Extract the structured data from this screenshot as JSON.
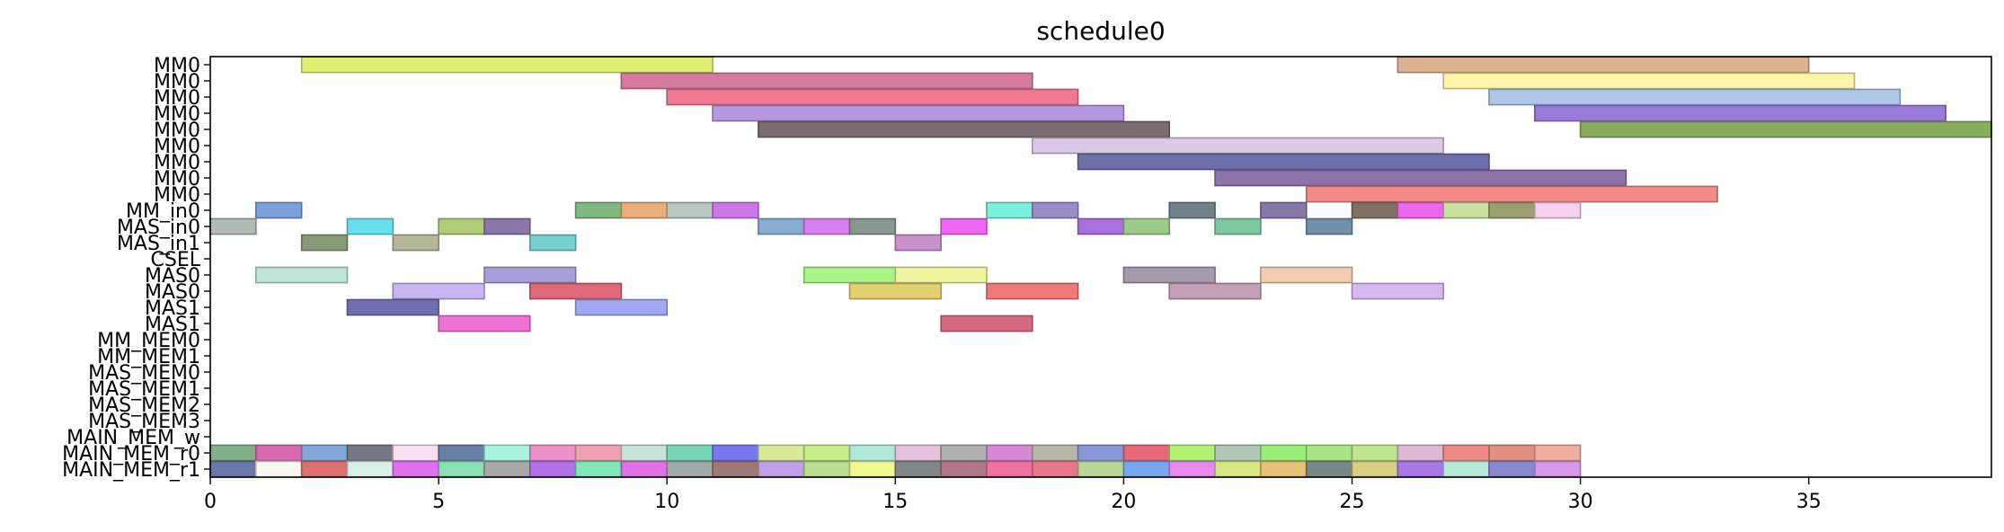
{
  "chart_data": {
    "type": "gantt",
    "title": "schedule0",
    "xlim": [
      0,
      39
    ],
    "xticks": [
      0,
      5,
      10,
      15,
      20,
      25,
      30,
      35
    ],
    "grid": false,
    "rows": [
      "MM0",
      "MM0",
      "MM0",
      "MM0",
      "MM0",
      "MM0",
      "MM0",
      "MM0",
      "MM0",
      "MM_in0",
      "MAS_in0",
      "MAS_in1",
      "CSEL",
      "MAS0",
      "MAS0",
      "MAS1",
      "MAS1",
      "MM_MEM0",
      "MM_MEM1",
      "MAS_MEM0",
      "MAS_MEM1",
      "MAS_MEM2",
      "MAS_MEM3",
      "MAIN_MEM_w",
      "MAIN_MEM_r0",
      "MAIN_MEM_r1"
    ],
    "tasks": [
      {
        "row": 0,
        "start": 2,
        "end": 11,
        "color": "#e0f070"
      },
      {
        "row": 0,
        "start": 26,
        "end": 35,
        "color": "#ddb090"
      },
      {
        "row": 1,
        "start": 9,
        "end": 18,
        "color": "#d87aa0"
      },
      {
        "row": 1,
        "start": 27,
        "end": 36,
        "color": "#fff3a8"
      },
      {
        "row": 2,
        "start": 10,
        "end": 19,
        "color": "#f07890"
      },
      {
        "row": 2,
        "start": 28,
        "end": 37,
        "color": "#aec6ea"
      },
      {
        "row": 3,
        "start": 11,
        "end": 20,
        "color": "#b598e0"
      },
      {
        "row": 3,
        "start": 29,
        "end": 38,
        "color": "#9a7ad8"
      },
      {
        "row": 4,
        "start": 12,
        "end": 21,
        "color": "#7a6e72"
      },
      {
        "row": 4,
        "start": 30,
        "end": 39,
        "color": "#8aae60"
      },
      {
        "row": 5,
        "start": 18,
        "end": 27,
        "color": "#dac8e6"
      },
      {
        "row": 6,
        "start": 19,
        "end": 28,
        "color": "#6e6eaa"
      },
      {
        "row": 7,
        "start": 22,
        "end": 31,
        "color": "#8e72ac"
      },
      {
        "row": 8,
        "start": 24,
        "end": 33,
        "color": "#f48a8a"
      },
      {
        "row": 9,
        "start": 1,
        "end": 2,
        "color": "#7aa0dc"
      },
      {
        "row": 9,
        "start": 8,
        "end": 9,
        "color": "#80b882"
      },
      {
        "row": 9,
        "start": 9,
        "end": 10,
        "color": "#e8b078"
      },
      {
        "row": 9,
        "start": 10,
        "end": 11,
        "color": "#b8c8c0"
      },
      {
        "row": 9,
        "start": 11,
        "end": 12,
        "color": "#cc78e8"
      },
      {
        "row": 9,
        "start": 17,
        "end": 18,
        "color": "#78f2de"
      },
      {
        "row": 9,
        "start": 18,
        "end": 19,
        "color": "#9a8ec8"
      },
      {
        "row": 9,
        "start": 21,
        "end": 22,
        "color": "#6e8288"
      },
      {
        "row": 9,
        "start": 23,
        "end": 24,
        "color": "#8878a8"
      },
      {
        "row": 9,
        "start": 25,
        "end": 26,
        "color": "#807260"
      },
      {
        "row": 9,
        "start": 26,
        "end": 27,
        "color": "#ee66ee"
      },
      {
        "row": 9,
        "start": 27,
        "end": 28,
        "color": "#c8e0a0"
      },
      {
        "row": 9,
        "start": 28,
        "end": 29,
        "color": "#9aa070"
      },
      {
        "row": 9,
        "start": 29,
        "end": 30,
        "color": "#f2d0ee"
      },
      {
        "row": 10,
        "start": 0,
        "end": 1,
        "color": "#b0bcb4"
      },
      {
        "row": 10,
        "start": 3,
        "end": 4,
        "color": "#66e2ee"
      },
      {
        "row": 10,
        "start": 5,
        "end": 6,
        "color": "#b0cc78"
      },
      {
        "row": 10,
        "start": 6,
        "end": 7,
        "color": "#8c78a8"
      },
      {
        "row": 10,
        "start": 12,
        "end": 13,
        "color": "#88acd4"
      },
      {
        "row": 10,
        "start": 13,
        "end": 14,
        "color": "#d87ef0"
      },
      {
        "row": 10,
        "start": 14,
        "end": 15,
        "color": "#889890"
      },
      {
        "row": 10,
        "start": 16,
        "end": 17,
        "color": "#ee66f2"
      },
      {
        "row": 10,
        "start": 19,
        "end": 20,
        "color": "#a870dc"
      },
      {
        "row": 10,
        "start": 20,
        "end": 21,
        "color": "#9ccc88"
      },
      {
        "row": 10,
        "start": 22,
        "end": 23,
        "color": "#7ec8a0"
      },
      {
        "row": 10,
        "start": 24,
        "end": 25,
        "color": "#7090a8"
      },
      {
        "row": 11,
        "start": 2,
        "end": 3,
        "color": "#869a76"
      },
      {
        "row": 11,
        "start": 4,
        "end": 5,
        "color": "#b4b898"
      },
      {
        "row": 11,
        "start": 7,
        "end": 8,
        "color": "#78d0d0"
      },
      {
        "row": 11,
        "start": 15,
        "end": 16,
        "color": "#c890cc"
      },
      {
        "row": 13,
        "start": 1,
        "end": 3,
        "color": "#c0e4d8"
      },
      {
        "row": 13,
        "start": 6,
        "end": 8,
        "color": "#a8a0d8"
      },
      {
        "row": 13,
        "start": 13,
        "end": 15,
        "color": "#a8f488"
      },
      {
        "row": 13,
        "start": 15,
        "end": 17,
        "color": "#eef4a0"
      },
      {
        "row": 13,
        "start": 20,
        "end": 22,
        "color": "#a49aac"
      },
      {
        "row": 13,
        "start": 23,
        "end": 25,
        "color": "#f2ccb0"
      },
      {
        "row": 14,
        "start": 4,
        "end": 6,
        "color": "#c8b4f2"
      },
      {
        "row": 14,
        "start": 7,
        "end": 9,
        "color": "#e06878"
      },
      {
        "row": 14,
        "start": 14,
        "end": 16,
        "color": "#e4d070"
      },
      {
        "row": 14,
        "start": 17,
        "end": 19,
        "color": "#f27878"
      },
      {
        "row": 14,
        "start": 21,
        "end": 23,
        "color": "#c4a0b8"
      },
      {
        "row": 14,
        "start": 25,
        "end": 27,
        "color": "#d8b8f2"
      },
      {
        "row": 15,
        "start": 3,
        "end": 5,
        "color": "#7070b0"
      },
      {
        "row": 15,
        "start": 8,
        "end": 10,
        "color": "#a0a8f4"
      },
      {
        "row": 16,
        "start": 5,
        "end": 7,
        "color": "#f070d8"
      },
      {
        "row": 16,
        "start": 16,
        "end": 18,
        "color": "#d86880"
      },
      {
        "row": 24,
        "start": 0,
        "end": 1,
        "color": "#80b088"
      },
      {
        "row": 24,
        "start": 1,
        "end": 2,
        "color": "#d868b0"
      },
      {
        "row": 24,
        "start": 2,
        "end": 3,
        "color": "#80a8dc"
      },
      {
        "row": 24,
        "start": 3,
        "end": 4,
        "color": "#787888"
      },
      {
        "row": 24,
        "start": 4,
        "end": 5,
        "color": "#f8e0f0"
      },
      {
        "row": 24,
        "start": 5,
        "end": 6,
        "color": "#6880a8"
      },
      {
        "row": 24,
        "start": 6,
        "end": 7,
        "color": "#a8f4e0"
      },
      {
        "row": 24,
        "start": 7,
        "end": 8,
        "color": "#f090c8"
      },
      {
        "row": 24,
        "start": 8,
        "end": 9,
        "color": "#f0a0b0"
      },
      {
        "row": 24,
        "start": 9,
        "end": 10,
        "color": "#c8e4d8"
      },
      {
        "row": 24,
        "start": 10,
        "end": 11,
        "color": "#78d8b8"
      },
      {
        "row": 24,
        "start": 11,
        "end": 12,
        "color": "#7878f0"
      },
      {
        "row": 24,
        "start": 12,
        "end": 13,
        "color": "#d8ec98"
      },
      {
        "row": 24,
        "start": 13,
        "end": 14,
        "color": "#c8f088"
      },
      {
        "row": 24,
        "start": 14,
        "end": 15,
        "color": "#b0e8dc"
      },
      {
        "row": 24,
        "start": 15,
        "end": 16,
        "color": "#e8c0e0"
      },
      {
        "row": 24,
        "start": 16,
        "end": 17,
        "color": "#b0b0b0"
      },
      {
        "row": 24,
        "start": 17,
        "end": 18,
        "color": "#d888d8"
      },
      {
        "row": 24,
        "start": 18,
        "end": 19,
        "color": "#b8b8a8"
      },
      {
        "row": 24,
        "start": 19,
        "end": 20,
        "color": "#8898d8"
      },
      {
        "row": 24,
        "start": 20,
        "end": 21,
        "color": "#e86878"
      },
      {
        "row": 24,
        "start": 21,
        "end": 22,
        "color": "#b0f470"
      },
      {
        "row": 24,
        "start": 22,
        "end": 23,
        "color": "#b0c8b8"
      },
      {
        "row": 24,
        "start": 23,
        "end": 24,
        "color": "#98f078"
      },
      {
        "row": 24,
        "start": 24,
        "end": 25,
        "color": "#a8e880"
      },
      {
        "row": 24,
        "start": 25,
        "end": 26,
        "color": "#c0e890"
      },
      {
        "row": 24,
        "start": 26,
        "end": 27,
        "color": "#e0b8d8"
      },
      {
        "row": 24,
        "start": 27,
        "end": 28,
        "color": "#f08888"
      },
      {
        "row": 24,
        "start": 28,
        "end": 29,
        "color": "#e09080"
      },
      {
        "row": 24,
        "start": 29,
        "end": 30,
        "color": "#f0b0a0"
      },
      {
        "row": 25,
        "start": 0,
        "end": 1,
        "color": "#6878a8"
      },
      {
        "row": 25,
        "start": 1,
        "end": 2,
        "color": "#fbf8f0"
      },
      {
        "row": 25,
        "start": 2,
        "end": 3,
        "color": "#e07070"
      },
      {
        "row": 25,
        "start": 3,
        "end": 4,
        "color": "#d8f0e8"
      },
      {
        "row": 25,
        "start": 4,
        "end": 5,
        "color": "#e070f0"
      },
      {
        "row": 25,
        "start": 5,
        "end": 6,
        "color": "#88e0b0"
      },
      {
        "row": 25,
        "start": 6,
        "end": 7,
        "color": "#a8a8a8"
      },
      {
        "row": 25,
        "start": 7,
        "end": 8,
        "color": "#b070e8"
      },
      {
        "row": 25,
        "start": 8,
        "end": 9,
        "color": "#80e8b8"
      },
      {
        "row": 25,
        "start": 9,
        "end": 10,
        "color": "#e070e8"
      },
      {
        "row": 25,
        "start": 10,
        "end": 11,
        "color": "#a0a8a8"
      },
      {
        "row": 25,
        "start": 11,
        "end": 12,
        "color": "#a07878"
      },
      {
        "row": 25,
        "start": 12,
        "end": 13,
        "color": "#c0a0e8"
      },
      {
        "row": 25,
        "start": 13,
        "end": 14,
        "color": "#b8e090"
      },
      {
        "row": 25,
        "start": 14,
        "end": 15,
        "color": "#f0f890"
      },
      {
        "row": 25,
        "start": 15,
        "end": 16,
        "color": "#808888"
      },
      {
        "row": 25,
        "start": 16,
        "end": 17,
        "color": "#b07888"
      },
      {
        "row": 25,
        "start": 17,
        "end": 18,
        "color": "#f070a0"
      },
      {
        "row": 25,
        "start": 18,
        "end": 19,
        "color": "#e87888"
      },
      {
        "row": 25,
        "start": 19,
        "end": 20,
        "color": "#b8d898"
      },
      {
        "row": 25,
        "start": 20,
        "end": 21,
        "color": "#78a8f0"
      },
      {
        "row": 25,
        "start": 21,
        "end": 22,
        "color": "#e888f0"
      },
      {
        "row": 25,
        "start": 22,
        "end": 23,
        "color": "#d8e880"
      },
      {
        "row": 25,
        "start": 23,
        "end": 24,
        "color": "#e8c078"
      },
      {
        "row": 25,
        "start": 24,
        "end": 25,
        "color": "#788888"
      },
      {
        "row": 25,
        "start": 25,
        "end": 26,
        "color": "#d8d080"
      },
      {
        "row": 25,
        "start": 26,
        "end": 27,
        "color": "#a878e8"
      },
      {
        "row": 25,
        "start": 27,
        "end": 28,
        "color": "#b8e8d8"
      },
      {
        "row": 25,
        "start": 28,
        "end": 29,
        "color": "#8888d0"
      },
      {
        "row": 25,
        "start": 29,
        "end": 30,
        "color": "#d898e8"
      }
    ]
  }
}
